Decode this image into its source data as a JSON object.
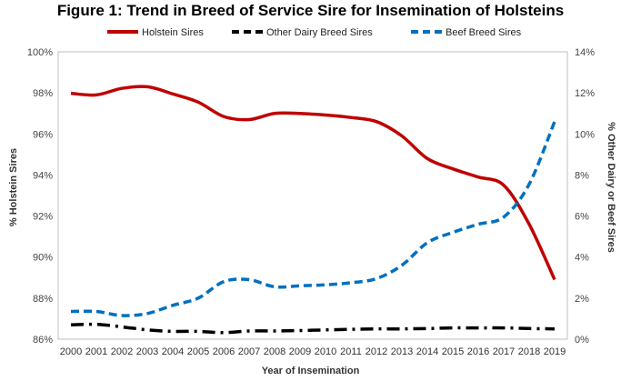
{
  "chart_data": {
    "type": "line",
    "title": "Figure 1: Trend in Breed of Service Sire for Insemination of Holsteins",
    "xlabel": "Year of Insemination",
    "ylabel_left": "% Holstein Sires",
    "ylabel_right": "% Other Dairy or Beef Sires",
    "x": [
      "2000",
      "2001",
      "2002",
      "2003",
      "2004",
      "2005",
      "2006",
      "2007",
      "2008",
      "2009",
      "2010",
      "2011",
      "2012",
      "2013",
      "2014",
      "2015",
      "2016",
      "2017",
      "2018",
      "2019"
    ],
    "ylim_left": [
      86,
      100
    ],
    "ylim_right": [
      0,
      14
    ],
    "yticks_left": [
      "86%",
      "88%",
      "90%",
      "92%",
      "94%",
      "96%",
      "98%",
      "100%"
    ],
    "yticks_right": [
      "0%",
      "2%",
      "4%",
      "6%",
      "8%",
      "10%",
      "12%",
      "14%"
    ],
    "legend_position": "top",
    "grid": false,
    "series": [
      {
        "name": "Holstein Sires",
        "axis": "left",
        "color": "#C00000",
        "style": "solid",
        "values": [
          97.98,
          97.9,
          98.22,
          98.3,
          97.95,
          97.55,
          96.85,
          96.7,
          97.0,
          97.0,
          96.92,
          96.8,
          96.6,
          95.9,
          94.8,
          94.3,
          93.9,
          93.5,
          91.6,
          88.9
        ]
      },
      {
        "name": "Other Dairy Breed Sires",
        "axis": "right",
        "color": "#000000",
        "style": "dashdot",
        "values": [
          0.7,
          0.72,
          0.6,
          0.45,
          0.38,
          0.38,
          0.32,
          0.4,
          0.4,
          0.42,
          0.45,
          0.48,
          0.5,
          0.5,
          0.52,
          0.55,
          0.55,
          0.55,
          0.52,
          0.5
        ]
      },
      {
        "name": "Beef Breed Sires",
        "axis": "right",
        "color": "#0070C0",
        "style": "dashed",
        "values": [
          1.35,
          1.35,
          1.15,
          1.25,
          1.65,
          2.0,
          2.8,
          2.9,
          2.55,
          2.6,
          2.65,
          2.75,
          2.95,
          3.6,
          4.7,
          5.2,
          5.6,
          5.95,
          7.55,
          10.6
        ]
      }
    ]
  }
}
